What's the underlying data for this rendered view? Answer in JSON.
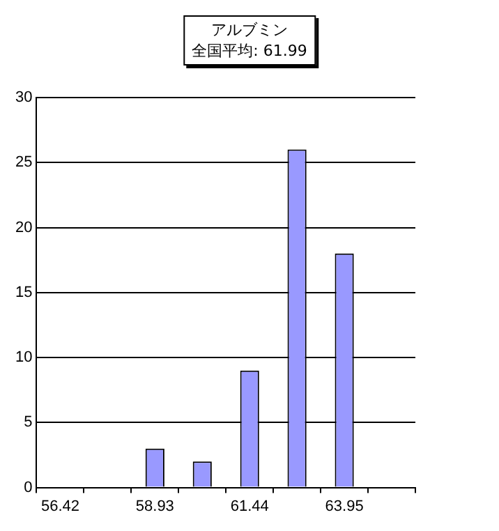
{
  "chart_data": {
    "type": "bar",
    "title": "アルブミン",
    "subtitle": "全国平均: 61.99",
    "categories": [
      "56.42",
      null,
      "58.93",
      null,
      "61.44",
      null,
      "63.95",
      null
    ],
    "values": [
      0,
      0,
      3,
      2,
      9,
      26,
      18,
      0
    ],
    "color": "#9999ff",
    "ylim": [
      0,
      30
    ],
    "yticks": [
      0,
      5,
      10,
      15,
      20,
      25,
      30
    ],
    "grid": "y"
  }
}
